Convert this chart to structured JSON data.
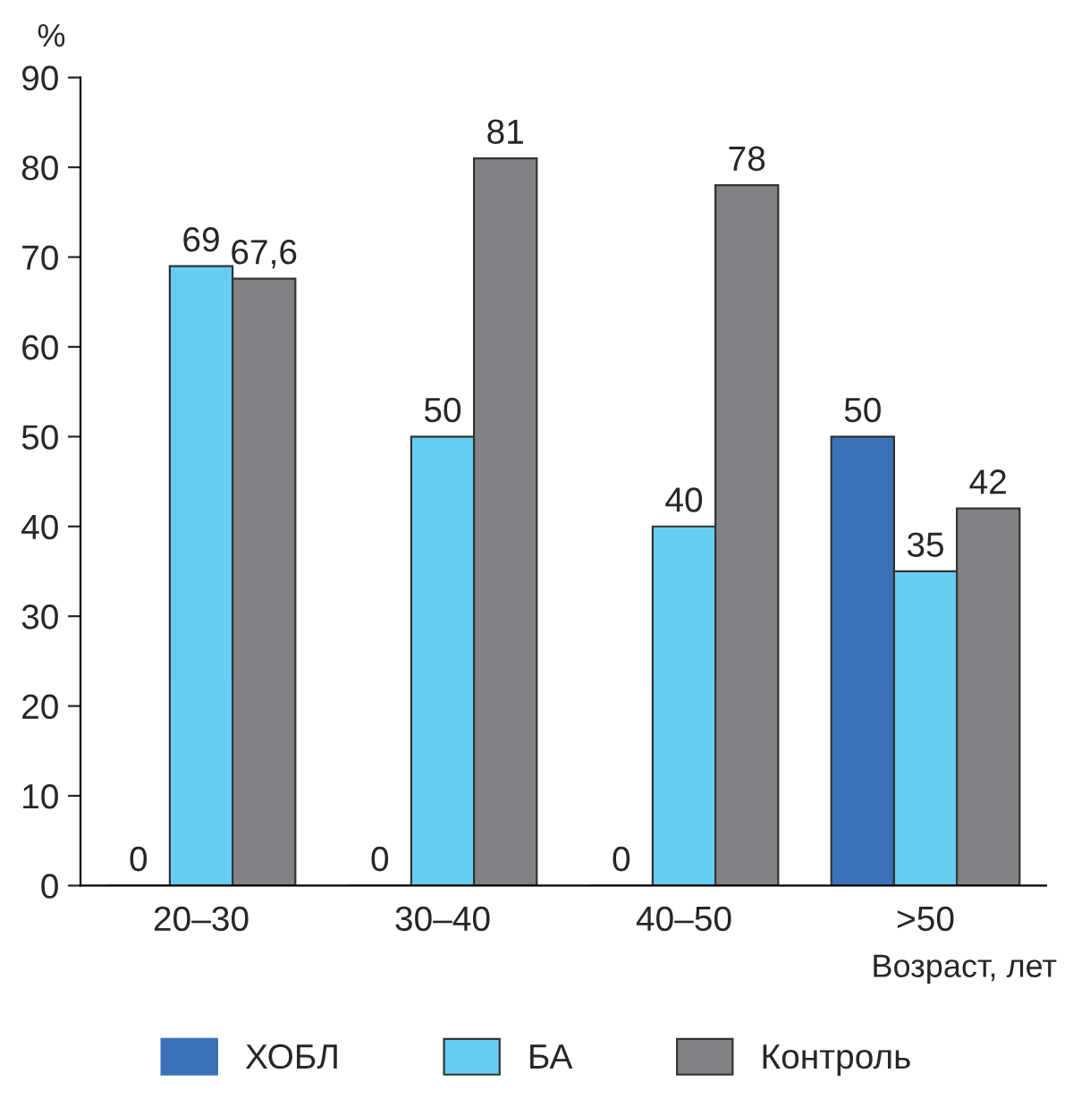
{
  "chart_data": {
    "type": "bar",
    "xlabel": "Возраст, лет",
    "ylabel": "%",
    "categories": [
      "20–30",
      "30–40",
      "40–50",
      ">50"
    ],
    "series": [
      {
        "name": "ХОБЛ",
        "color": "#3a72b8",
        "values": [
          0,
          0,
          0,
          50
        ],
        "value_labels": [
          "0",
          "0",
          "0",
          "50"
        ]
      },
      {
        "name": "БА",
        "color": "#66cdf2",
        "values": [
          69,
          50,
          40,
          35
        ],
        "value_labels": [
          "69",
          "50",
          "40",
          "35"
        ]
      },
      {
        "name": "Контроль",
        "color": "#818285",
        "values": [
          67.6,
          81,
          78,
          42
        ],
        "value_labels": [
          "67,6",
          "81",
          "78",
          "42"
        ]
      }
    ],
    "ylim": [
      0,
      90
    ],
    "yticks": [
      0,
      10,
      20,
      30,
      40,
      50,
      60,
      70,
      80,
      90
    ],
    "grid": false,
    "legend": "bottom"
  }
}
